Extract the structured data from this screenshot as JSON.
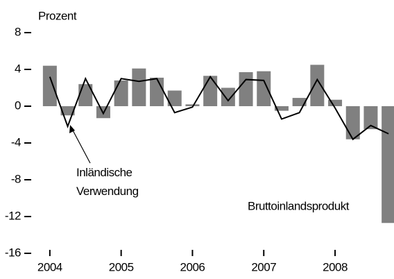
{
  "chart_data": {
    "type": "bar+line",
    "y_label": "Prozent",
    "categories": [
      "2004",
      null,
      null,
      null,
      "2005",
      null,
      null,
      null,
      "2006",
      null,
      null,
      null,
      "2007",
      null,
      null,
      null,
      "2008",
      null,
      null,
      null
    ],
    "series": [
      {
        "name": "Bruttoinlandsprodukt",
        "type": "bar",
        "color": "#808080",
        "values": [
          4.4,
          -1.0,
          2.4,
          -1.3,
          2.8,
          4.1,
          3.1,
          1.7,
          0.2,
          3.3,
          2.0,
          3.7,
          3.8,
          -0.5,
          0.9,
          4.5,
          0.7,
          -3.6,
          -2.5,
          -12.7
        ]
      },
      {
        "name": "Inländische Verwendung",
        "type": "line",
        "color": "#000000",
        "values": [
          3.2,
          -2.2,
          3.0,
          -0.8,
          3.0,
          2.7,
          3.0,
          -0.7,
          -0.1,
          3.2,
          0.6,
          2.9,
          2.8,
          -1.4,
          -0.7,
          2.9,
          -0.2,
          -3.6,
          -2.1,
          -3.0
        ]
      }
    ],
    "ylim": [
      -16,
      8
    ],
    "yticks": [
      8,
      4,
      0,
      -4,
      -8,
      -12,
      -16
    ]
  }
}
